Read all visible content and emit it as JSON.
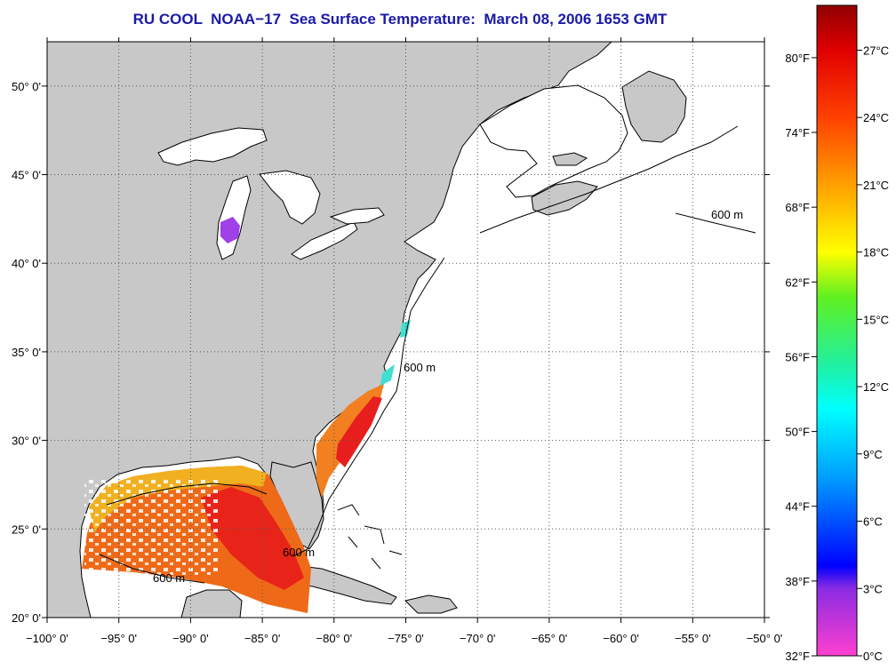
{
  "title": "RU COOL  NOAA−17  Sea Surface Temperature:  March 08, 2006 1653 GMT",
  "map": {
    "lon_range": [
      -100,
      -50
    ],
    "lat_range": [
      20,
      52.5
    ],
    "lon_ticks": [
      {
        "value": -100,
        "label": "−100° 0'"
      },
      {
        "value": -95,
        "label": "−95° 0'"
      },
      {
        "value": -90,
        "label": "−90° 0'"
      },
      {
        "value": -85,
        "label": "−85° 0'"
      },
      {
        "value": -80,
        "label": "−80° 0'"
      },
      {
        "value": -75,
        "label": "−75° 0'"
      },
      {
        "value": -70,
        "label": "−70° 0'"
      },
      {
        "value": -65,
        "label": "−65° 0'"
      },
      {
        "value": -60,
        "label": "−60° 0'"
      },
      {
        "value": -55,
        "label": "−55° 0'"
      },
      {
        "value": -50,
        "label": "−50° 0'"
      }
    ],
    "lat_ticks": [
      {
        "value": 20,
        "label": "20° 0'"
      },
      {
        "value": 25,
        "label": "25° 0'"
      },
      {
        "value": 30,
        "label": "30° 0'"
      },
      {
        "value": 35,
        "label": "35° 0'"
      },
      {
        "value": 40,
        "label": "40° 0'"
      },
      {
        "value": 45,
        "label": "45° 0'"
      },
      {
        "value": 50,
        "label": "50° 0'"
      }
    ],
    "isobath_label": "600 m",
    "land_color": "#c8c8c8",
    "ocean_color": "#ffffff"
  },
  "colorbar": {
    "min_c": 0,
    "max_c": 29,
    "celsius_labels": [
      {
        "value": 0,
        "label": "0°C"
      },
      {
        "value": 3,
        "label": "3°C"
      },
      {
        "value": 6,
        "label": "6°C"
      },
      {
        "value": 9,
        "label": "9°C"
      },
      {
        "value": 12,
        "label": "12°C"
      },
      {
        "value": 15,
        "label": "15°C"
      },
      {
        "value": 18,
        "label": "18°C"
      },
      {
        "value": 21,
        "label": "21°C"
      },
      {
        "value": 24,
        "label": "24°C"
      },
      {
        "value": 27,
        "label": "27°C"
      }
    ],
    "fahrenheit_labels": [
      {
        "value": 32,
        "label": "32°F"
      },
      {
        "value": 38,
        "label": "38°F"
      },
      {
        "value": 44,
        "label": "44°F"
      },
      {
        "value": 50,
        "label": "50°F"
      },
      {
        "value": 56,
        "label": "56°F"
      },
      {
        "value": 62,
        "label": "62°F"
      },
      {
        "value": 68,
        "label": "68°F"
      },
      {
        "value": 74,
        "label": "74°F"
      },
      {
        "value": 80,
        "label": "80°F"
      }
    ],
    "stops": [
      {
        "c": 0,
        "color": "#ff40d0"
      },
      {
        "c": 3,
        "color": "#8a2be2"
      },
      {
        "c": 4,
        "color": "#0000ff"
      },
      {
        "c": 8,
        "color": "#00a0ff"
      },
      {
        "c": 11,
        "color": "#00ffff"
      },
      {
        "c": 13,
        "color": "#20f0a0"
      },
      {
        "c": 16,
        "color": "#60f020"
      },
      {
        "c": 18,
        "color": "#ffff00"
      },
      {
        "c": 21,
        "color": "#ffa000"
      },
      {
        "c": 24,
        "color": "#ff4000"
      },
      {
        "c": 27,
        "color": "#e00000"
      },
      {
        "c": 29,
        "color": "#900000"
      }
    ]
  }
}
